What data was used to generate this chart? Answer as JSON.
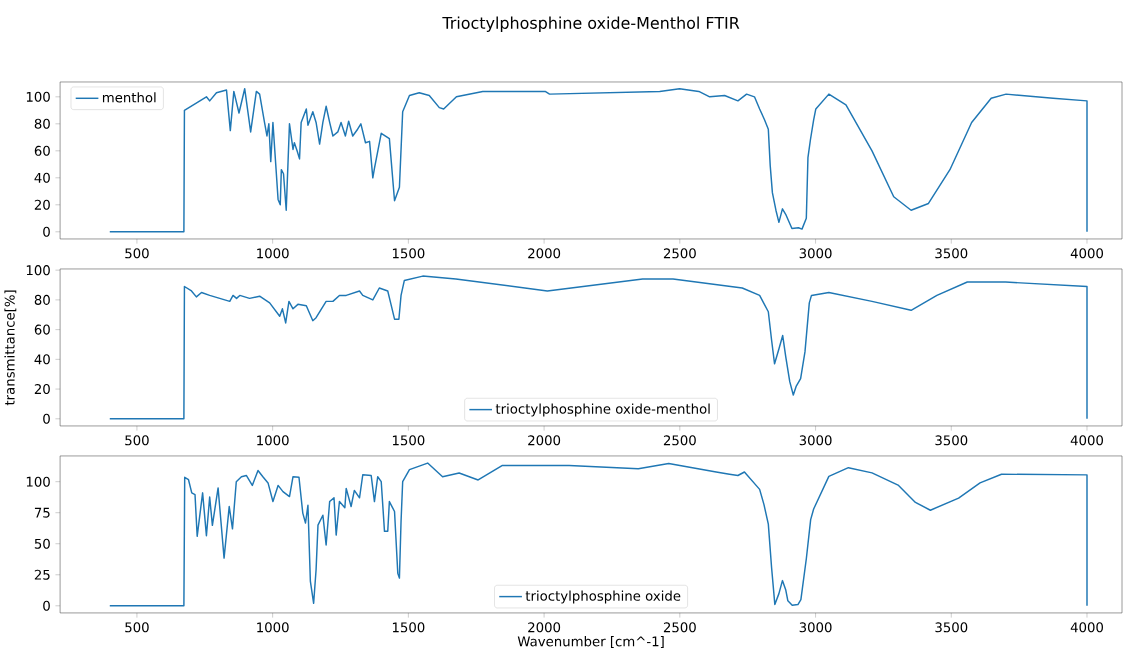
{
  "chart_data": [
    {
      "type": "line",
      "title": "Trioctylphosphine oxide-Menthol FTIR",
      "xlim": [
        217,
        4129
      ],
      "ylim": [
        -5.3,
        111
      ],
      "xticks": [
        500,
        1000,
        1500,
        2000,
        2500,
        3000,
        3500,
        4000
      ],
      "yticks": [
        0,
        20,
        40,
        60,
        80,
        100
      ],
      "legend": "top left",
      "grid": false,
      "x": [
        400,
        673,
        675,
        756,
        768,
        793,
        830,
        844,
        857,
        876,
        897,
        919,
        940,
        952,
        970,
        979,
        986,
        993,
        1001,
        1020,
        1028,
        1032,
        1040,
        1050,
        1062,
        1075,
        1080,
        1090,
        1099,
        1105,
        1124,
        1130,
        1148,
        1160,
        1173,
        1185,
        1197,
        1210,
        1222,
        1240,
        1252,
        1268,
        1280,
        1295,
        1313,
        1325,
        1342,
        1357,
        1369,
        1375,
        1400,
        1430,
        1449,
        1467,
        1479,
        1504,
        1540,
        1577,
        1614,
        1630,
        1677,
        1774,
        2004,
        2020,
        2426,
        2499,
        2570,
        2610,
        2665,
        2714,
        2746,
        2775,
        2794,
        2812,
        2826,
        2833,
        2841,
        2854,
        2865,
        2878,
        2890,
        2913,
        2937,
        2950,
        2966,
        2972,
        2981,
        2993,
        3001,
        3049,
        3112,
        3208,
        3288,
        3352,
        3416,
        3495,
        3575,
        3647,
        3702,
        3875,
        4000,
        4000
      ],
      "series": [
        {
          "name": "menthol",
          "color": "#1f77b4",
          "values": [
            0,
            0,
            90,
            100,
            97,
            103,
            105,
            75,
            104,
            88,
            106,
            74,
            104,
            102,
            81,
            71,
            80,
            52,
            81,
            24,
            20,
            46,
            43,
            16,
            80,
            61,
            66,
            60,
            54,
            81,
            91,
            79,
            89,
            81,
            65,
            81,
            93,
            81,
            71,
            74,
            81,
            71,
            82,
            71,
            76,
            80,
            66,
            67,
            40,
            47,
            73,
            69,
            23,
            33,
            89,
            101,
            103,
            101,
            92,
            91,
            100,
            104,
            104,
            102,
            104,
            106,
            104,
            100,
            101,
            97,
            102,
            100,
            91,
            83,
            76,
            49,
            29,
            16,
            7,
            17,
            13,
            2.5,
            3,
            2,
            10,
            55,
            68,
            83,
            91,
            102,
            94,
            60,
            26,
            16,
            21,
            46,
            81,
            99,
            102,
            99,
            97,
            0
          ]
        }
      ]
    },
    {
      "type": "line",
      "ylabel": "transmittance[%]",
      "xlim": [
        217,
        4129
      ],
      "ylim": [
        -4.8,
        100.8
      ],
      "xticks": [
        500,
        1000,
        1500,
        2000,
        2500,
        3000,
        3500,
        4000
      ],
      "yticks": [
        0,
        20,
        40,
        60,
        80,
        100
      ],
      "legend": "bottom",
      "grid": false,
      "x": [
        400,
        673,
        675,
        701,
        719,
        738,
        768,
        805,
        842,
        854,
        867,
        879,
        915,
        952,
        989,
        1026,
        1036,
        1048,
        1060,
        1075,
        1093,
        1124,
        1148,
        1160,
        1197,
        1222,
        1246,
        1271,
        1320,
        1332,
        1369,
        1393,
        1424,
        1436,
        1449,
        1465,
        1473,
        1485,
        1553,
        1675,
        2012,
        2363,
        2475,
        2730,
        2794,
        2826,
        2838,
        2849,
        2865,
        2879,
        2890,
        2905,
        2918,
        2929,
        2945,
        2961,
        2977,
        2985,
        3049,
        3208,
        3352,
        3447,
        3559,
        3700,
        4000,
        4000
      ],
      "series": [
        {
          "name": "trioctylphosphine oxide-menthol",
          "color": "#1f77b4",
          "values": [
            0,
            0,
            89,
            86,
            82,
            85,
            83,
            81,
            79,
            83,
            81,
            83,
            81,
            82.5,
            78,
            69,
            74,
            64.5,
            79,
            74,
            77,
            76,
            66,
            68,
            79,
            79,
            83,
            83,
            86,
            83,
            80,
            88,
            86,
            77,
            67,
            67,
            83,
            93,
            96,
            94,
            86,
            94,
            94,
            88,
            83,
            72,
            53,
            37,
            47,
            56,
            42,
            25,
            16,
            22,
            27,
            45,
            78,
            83,
            85,
            79,
            73,
            83,
            92,
            92,
            89,
            0
          ]
        }
      ]
    },
    {
      "type": "line",
      "xlabel": "Wavenumber [cm^-1]",
      "xlim": [
        217,
        4129
      ],
      "ylim": [
        -5.75,
        120.75
      ],
      "xticks": [
        500,
        1000,
        1500,
        2000,
        2500,
        3000,
        3500,
        4000
      ],
      "yticks": [
        0,
        25,
        50,
        75,
        100
      ],
      "legend": "bottom",
      "grid": false,
      "x": [
        400,
        673,
        676,
        690,
        702,
        714,
        722,
        742,
        756,
        768,
        778,
        799,
        821,
        840,
        852,
        866,
        885,
        903,
        925,
        946,
        964,
        983,
        1001,
        1020,
        1038,
        1062,
        1075,
        1097,
        1111,
        1121,
        1130,
        1139,
        1151,
        1160,
        1167,
        1185,
        1197,
        1210,
        1226,
        1234,
        1246,
        1266,
        1271,
        1289,
        1301,
        1320,
        1332,
        1363,
        1375,
        1387,
        1400,
        1412,
        1424,
        1430,
        1449,
        1461,
        1467,
        1473,
        1479,
        1504,
        1571,
        1626,
        1687,
        1757,
        1845,
        2092,
        2347,
        2459,
        2634,
        2683,
        2714,
        2738,
        2794,
        2810,
        2826,
        2838,
        2850,
        2865,
        2878,
        2890,
        2898,
        2914,
        2935,
        2946,
        2966,
        2982,
        2993,
        3049,
        3121,
        3208,
        3304,
        3368,
        3423,
        3527,
        3606,
        3685,
        4000,
        4000
      ],
      "series": [
        {
          "name": "trioctylphosphine oxide",
          "color": "#1f77b4",
          "values": [
            0,
            0,
            103.5,
            101.6,
            91,
            89.6,
            56,
            91,
            56.5,
            87.6,
            64.8,
            95,
            38.4,
            80,
            62,
            100,
            104,
            105,
            97,
            109,
            104,
            99,
            84,
            97,
            92,
            88,
            104,
            103.5,
            74.7,
            66.7,
            81,
            19.6,
            2,
            29,
            65,
            73,
            49,
            84,
            87,
            57,
            84,
            79,
            94.6,
            80,
            93,
            87,
            105.6,
            105,
            84,
            104,
            100,
            60,
            60,
            84,
            76,
            26.3,
            22.3,
            68,
            100,
            109.7,
            115,
            104,
            107,
            101.4,
            113,
            113,
            110.5,
            114.7,
            107.8,
            106,
            105,
            107.8,
            93.8,
            81.5,
            65.8,
            30.9,
            1.1,
            9.8,
            20.3,
            13,
            4,
            0.4,
            1,
            5,
            37.9,
            69.4,
            78,
            104.3,
            111.3,
            107.1,
            97.3,
            83.3,
            77,
            86.8,
            99,
            106,
            105.5,
            0
          ]
        }
      ]
    }
  ]
}
